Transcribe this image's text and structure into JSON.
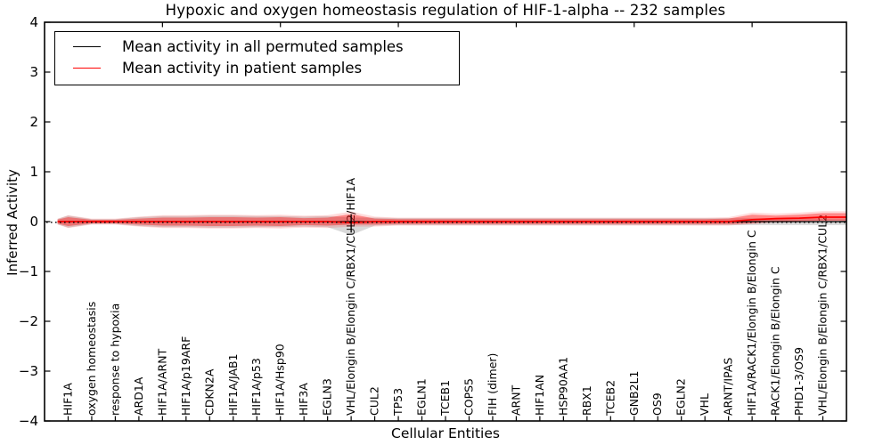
{
  "title": "Hypoxic and oxygen homeostasis regulation of HIF-1-alpha -- 232 samples",
  "axes": {
    "ylabel": "Inferred Activity",
    "xlabel": "Cellular Entities"
  },
  "legend": {
    "position": "upper left",
    "items": [
      {
        "label": "Mean activity in all permuted samples",
        "color": "#000000"
      },
      {
        "label": "Mean activity in patient samples",
        "color": "#ff0000"
      }
    ]
  },
  "chart_data": {
    "type": "line",
    "title": "Hypoxic and oxygen homeostasis regulation of HIF-1-alpha -- 232 samples",
    "xlabel": "Cellular Entities",
    "ylabel": "Inferred Activity",
    "xlim": [
      0,
      34
    ],
    "ylim": [
      -4,
      4
    ],
    "grid": false,
    "legend_position": "upper left",
    "yticks": [
      4,
      3,
      2,
      1,
      0,
      -1,
      -2,
      -3,
      -4
    ],
    "ytick_labels": [
      "4",
      "3",
      "2",
      "1",
      "0",
      "−1",
      "−2",
      "−3",
      "−4"
    ],
    "top_xticks": [
      5,
      10,
      15,
      20,
      25,
      30
    ],
    "categories": [
      "HIF1A",
      "oxygen homeostasis",
      "response to hypoxia",
      "ARD1A",
      "HIF1A/ARNT",
      "HIF1A/p19ARF",
      "CDKN2A",
      "HIF1A/JAB1",
      "HIF1A/p53",
      "HIF1A/Hsp90",
      "HIF3A",
      "EGLN3",
      "VHL/Elongin B/Elongin C/RBX1/CUL2/HIF1A",
      "CUL2",
      "TP53",
      "EGLN1",
      "TCEB1",
      "COPS5",
      "FIH (dimer)",
      "ARNT",
      "HIF1AN",
      "HSP90AA1",
      "RBX1",
      "TCEB2",
      "GNB2L1",
      "OS9",
      "EGLN2",
      "VHL",
      "ARNT/IPAS",
      "HIF1A/RACK1/Elongin B/Elongin C",
      "RACK1/Elongin B/Elongin C",
      "PHD1-3/OS9",
      "VHL/Elongin B/Elongin C/RBX1/CUL2"
    ],
    "series": [
      {
        "name": "Mean activity in all permuted samples",
        "color": "#000000",
        "values": [
          0,
          0,
          0,
          0,
          0,
          0,
          0,
          0,
          0,
          0,
          0,
          0,
          0,
          0,
          0,
          0,
          0,
          0,
          0,
          0,
          0,
          0,
          0,
          0,
          0,
          0,
          0,
          0,
          0,
          0,
          0,
          0,
          0
        ]
      },
      {
        "name": "Mean activity in patient samples",
        "color": "#ff0000",
        "values": [
          0,
          0,
          0,
          0,
          0,
          0,
          0,
          0,
          0,
          0,
          0,
          0,
          -0.02,
          0,
          0,
          0,
          0,
          0,
          0,
          0,
          0,
          0,
          0,
          0,
          0,
          0,
          0,
          0,
          0,
          0.04,
          0.06,
          0.07,
          0.09
        ]
      }
    ],
    "bands": [
      {
        "name": "permuted-sample-range",
        "color": "#888888",
        "opacity": 0.32,
        "upper": [
          0.12,
          0.05,
          0.05,
          0.09,
          0.11,
          0.11,
          0.12,
          0.12,
          0.11,
          0.11,
          0.1,
          0.11,
          0.08,
          0.08,
          0.07,
          0.07,
          0.07,
          0.07,
          0.07,
          0.07,
          0.07,
          0.07,
          0.07,
          0.07,
          0.07,
          0.07,
          0.07,
          0.07,
          0.07,
          0.07,
          0.06,
          0.06,
          0.06
        ],
        "lower": [
          -0.12,
          -0.05,
          -0.05,
          -0.09,
          -0.11,
          -0.11,
          -0.12,
          -0.12,
          -0.11,
          -0.11,
          -0.1,
          -0.11,
          -0.27,
          -0.08,
          -0.07,
          -0.07,
          -0.07,
          -0.07,
          -0.07,
          -0.07,
          -0.07,
          -0.07,
          -0.07,
          -0.07,
          -0.07,
          -0.07,
          -0.07,
          -0.07,
          -0.07,
          -0.07,
          -0.07,
          -0.07,
          -0.07
        ]
      },
      {
        "name": "patient-sample-outer-range",
        "color": "#ff0000",
        "opacity": 0.14,
        "upper": [
          0.13,
          0.06,
          0.06,
          0.1,
          0.13,
          0.13,
          0.14,
          0.14,
          0.13,
          0.14,
          0.12,
          0.13,
          0.2,
          0.1,
          0.08,
          0.08,
          0.08,
          0.08,
          0.08,
          0.08,
          0.08,
          0.08,
          0.08,
          0.08,
          0.08,
          0.08,
          0.08,
          0.08,
          0.09,
          0.18,
          0.16,
          0.18,
          0.21
        ],
        "lower": [
          -0.13,
          -0.06,
          -0.06,
          -0.1,
          -0.13,
          -0.13,
          -0.14,
          -0.14,
          -0.13,
          -0.14,
          -0.12,
          -0.13,
          -0.1,
          -0.1,
          -0.08,
          -0.08,
          -0.08,
          -0.08,
          -0.08,
          -0.08,
          -0.08,
          -0.08,
          -0.08,
          -0.08,
          -0.08,
          -0.08,
          -0.08,
          -0.08,
          -0.08,
          -0.05,
          -0.02,
          -0.01,
          0.0
        ]
      },
      {
        "name": "patient-sample-inner-range",
        "color": "#ff0000",
        "opacity": 0.38,
        "upper": [
          0.09,
          0.035,
          0.035,
          0.06,
          0.08,
          0.08,
          0.09,
          0.09,
          0.08,
          0.09,
          0.07,
          0.08,
          0.15,
          0.06,
          0.05,
          0.05,
          0.05,
          0.05,
          0.05,
          0.05,
          0.05,
          0.05,
          0.05,
          0.05,
          0.05,
          0.05,
          0.05,
          0.05,
          0.06,
          0.14,
          0.12,
          0.14,
          0.17
        ],
        "lower": [
          -0.09,
          -0.035,
          -0.035,
          -0.06,
          -0.08,
          -0.08,
          -0.09,
          -0.09,
          -0.08,
          -0.09,
          -0.07,
          -0.08,
          -0.06,
          -0.06,
          -0.05,
          -0.05,
          -0.05,
          -0.05,
          -0.05,
          -0.05,
          -0.05,
          -0.05,
          -0.05,
          -0.05,
          -0.05,
          -0.05,
          -0.05,
          -0.05,
          -0.05,
          -0.03,
          0.0,
          0.01,
          0.02
        ]
      }
    ],
    "error_bar": {
      "category": "VHL/Elongin B/Elongin C/RBX1/CUL2/HIF1A",
      "index": 13,
      "top": 0.15,
      "bottom": -0.22
    },
    "zero_line": {
      "style": "dotted",
      "color": "#000000",
      "y": 0
    }
  }
}
